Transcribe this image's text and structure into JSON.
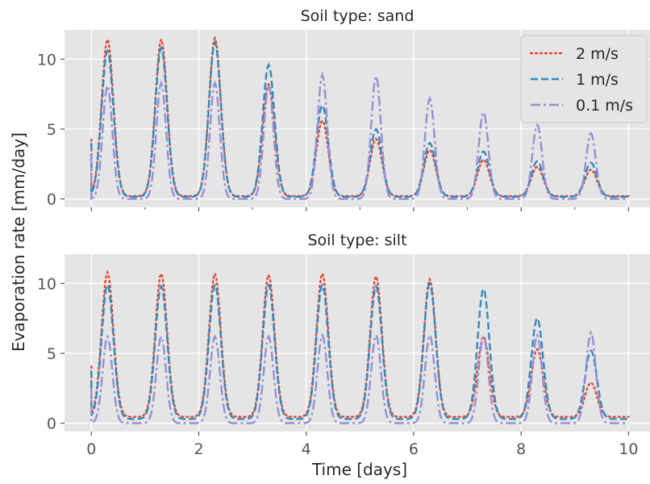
{
  "figure": {
    "ylabel": "Evaporation rate [mm/day]",
    "xlabel": "Time [days]",
    "legend_placement": "top-right (first panel)"
  },
  "chart_data": [
    {
      "type": "line",
      "title": "Soil type: sand",
      "xlim": [
        -0.5,
        10.4
      ],
      "ylim": [
        -0.6,
        12.1
      ],
      "grid": true,
      "xticks": [
        0,
        2,
        4,
        6,
        8,
        10
      ],
      "minor_xticks": [
        1,
        3,
        5,
        7,
        9
      ],
      "yticks": [
        0,
        5,
        10
      ],
      "x_tick_labels_shown": false,
      "legend": true,
      "series": [
        {
          "name": "2 m/s",
          "color": "#e24a33",
          "dash": "dotted",
          "peaks": [
            11.4,
            11.4,
            11.5,
            8.2,
            5.6,
            4.3,
            3.5,
            2.8,
            2.3,
            2.1
          ],
          "base": 0.2,
          "width": 0.11
        },
        {
          "name": "1 m/s",
          "color": "#348abd",
          "dash": "dashed",
          "peaks": [
            10.6,
            10.8,
            11.2,
            9.6,
            6.7,
            5.0,
            4.0,
            3.4,
            2.7,
            2.6
          ],
          "base": 0.15,
          "width": 0.11
        },
        {
          "name": "0.1 m/s",
          "color": "#988ed5",
          "dash": "dashdot",
          "peaks": [
            8.1,
            8.3,
            8.3,
            8.1,
            8.9,
            8.8,
            7.2,
            6.2,
            5.3,
            4.7
          ],
          "base": 0.0,
          "width": 0.09
        }
      ]
    },
    {
      "type": "line",
      "title": "Soil type: silt",
      "xlim": [
        -0.5,
        10.4
      ],
      "ylim": [
        -0.6,
        12.1
      ],
      "grid": true,
      "xticks": [
        0,
        2,
        4,
        6,
        8,
        10
      ],
      "minor_xticks": [],
      "yticks": [
        0,
        5,
        10
      ],
      "x_tick_labels_shown": true,
      "legend": false,
      "series": [
        {
          "name": "2 m/s",
          "color": "#e24a33",
          "dash": "dotted",
          "peaks": [
            10.8,
            10.7,
            10.7,
            10.6,
            10.7,
            10.5,
            10.3,
            6.2,
            5.3,
            2.9
          ],
          "base": 0.45,
          "width": 0.11
        },
        {
          "name": "1 m/s",
          "color": "#348abd",
          "dash": "dashed",
          "peaks": [
            9.9,
            9.8,
            9.9,
            9.9,
            9.9,
            9.8,
            10.0,
            9.6,
            7.5,
            5.2
          ],
          "base": 0.3,
          "width": 0.11
        },
        {
          "name": "0.1 m/s",
          "color": "#988ed5",
          "dash": "dashdot",
          "peaks": [
            6.2,
            6.2,
            6.2,
            6.2,
            6.3,
            6.3,
            6.3,
            6.2,
            6.3,
            6.5
          ],
          "base": 0.0,
          "width": 0.09
        }
      ]
    }
  ]
}
